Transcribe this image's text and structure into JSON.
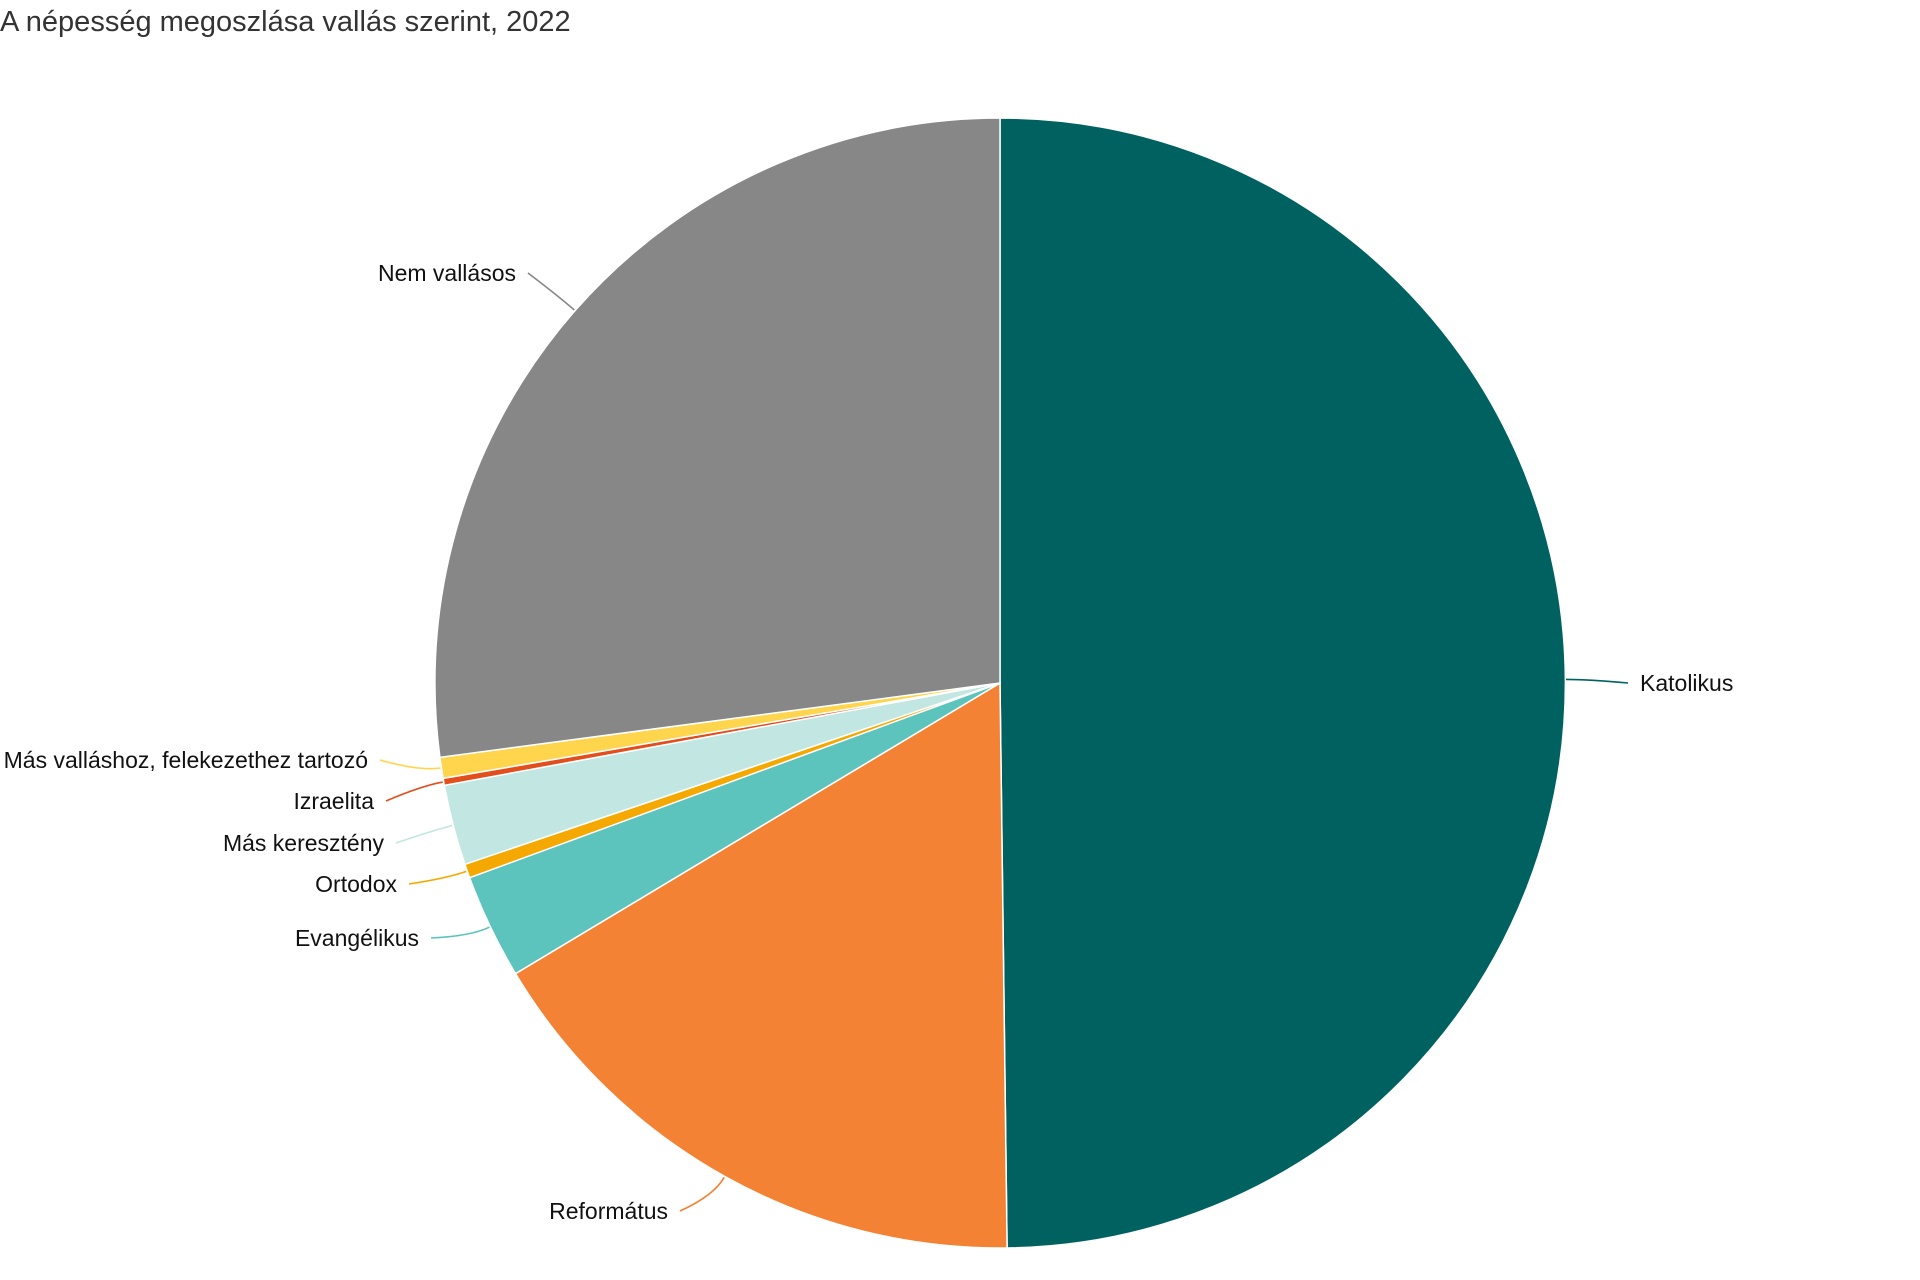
{
  "chart_data": {
    "type": "pie",
    "title": "A népesség megoszlása vallás szerint, 2022",
    "start_angle_deg": 0,
    "direction": "clockwise",
    "slices": [
      {
        "name": "Katolikus",
        "value": 49.8,
        "color": "#006260"
      },
      {
        "name": "Református",
        "value": 16.6,
        "color": "#f48234"
      },
      {
        "name": "Evangélikus",
        "value": 3.0,
        "color": "#5cc4bd"
      },
      {
        "name": "Ortodox",
        "value": 0.4,
        "color": "#f5a800"
      },
      {
        "name": "Más keresztény",
        "value": 2.3,
        "color": "#c2e6e1"
      },
      {
        "name": "Izraelita",
        "value": 0.2,
        "color": "#e34e1d"
      },
      {
        "name": "Más valláshoz, felekezethez tartozó",
        "value": 0.6,
        "color": "#ffd54d"
      },
      {
        "name": "Nem vallásos",
        "value": 27.1,
        "color": "#878787"
      }
    ]
  }
}
